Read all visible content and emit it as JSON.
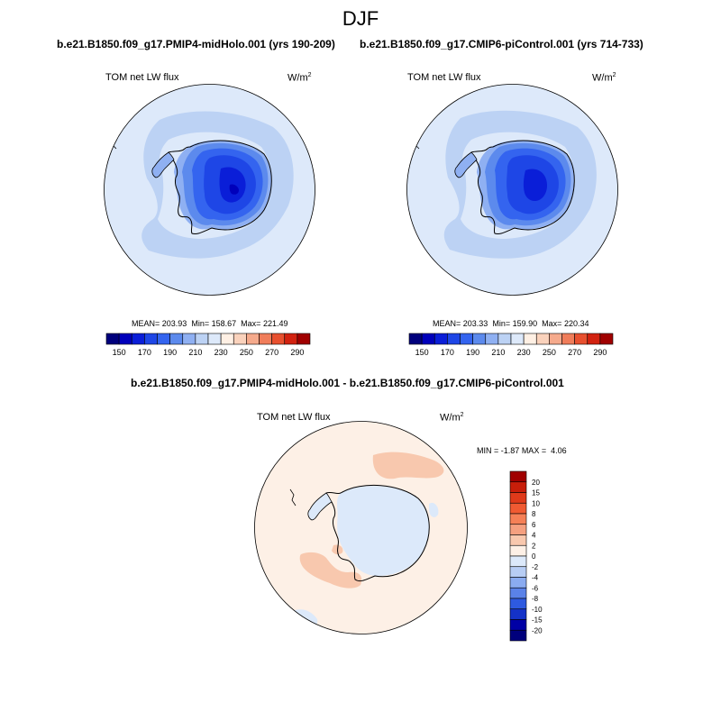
{
  "figure": {
    "season_title": "DJF",
    "variable_name": "TOM net LW flux",
    "units_base": "W/m",
    "units_exp": "2"
  },
  "panels": [
    {
      "case_title": "b.e21.B1850.f09_g17.PMIP4-midHolo.001 (yrs 190-209)",
      "stats": {
        "mean_label": "MEAN=",
        "mean": "203.93",
        "min_label": "Min=",
        "min": "158.67",
        "max_label": "Max=",
        "max": "221.49"
      }
    },
    {
      "case_title": "b.e21.B1850.f09_g17.CMIP6-piControl.001 (yrs 714-733)",
      "stats": {
        "mean_label": "MEAN=",
        "mean": "203.33",
        "min_label": "Min=",
        "min": "159.90",
        "max_label": "Max=",
        "max": "220.34"
      }
    }
  ],
  "difference": {
    "title": "b.e21.B1850.f09_g17.PMIP4-midHolo.001 - b.e21.B1850.f09_g17.CMIP6-piControl.001",
    "stats": {
      "min_label": "MIN =",
      "min": "-1.87",
      "max_label": "MAX =",
      "max": "4.06"
    }
  },
  "chart_data": [
    {
      "type": "filled_contour_map",
      "projection": "south_polar_stereographic",
      "title": "b.e21.B1850.f09_g17.PMIP4-midHolo.001 (yrs 190-209)",
      "variable": "TOM net LW flux",
      "units": "W/m2",
      "mean": 203.93,
      "min": 158.67,
      "max": 221.49,
      "colorbar": {
        "orientation": "horizontal",
        "levels": [
          150,
          160,
          170,
          180,
          190,
          200,
          210,
          220,
          230,
          240,
          250,
          260,
          270,
          280,
          290
        ],
        "tick_labels": [
          "150",
          "170",
          "190",
          "210",
          "230",
          "250",
          "270",
          "290"
        ],
        "colors": [
          "#00007c",
          "#0000bb",
          "#0a1ed8",
          "#1e46e6",
          "#3464ef",
          "#5c8aed",
          "#8fb0f2",
          "#bcd2f4",
          "#dde9fa",
          "#fff0e4",
          "#fad2bc",
          "#f5aa8c",
          "#f07d5a",
          "#e8502f",
          "#d22210",
          "#a00000"
        ]
      }
    },
    {
      "type": "filled_contour_map",
      "projection": "south_polar_stereographic",
      "title": "b.e21.B1850.f09_g17.CMIP6-piControl.001 (yrs 714-733)",
      "variable": "TOM net LW flux",
      "units": "W/m2",
      "mean": 203.33,
      "min": 159.9,
      "max": 220.34,
      "colorbar": {
        "orientation": "horizontal",
        "levels": [
          150,
          160,
          170,
          180,
          190,
          200,
          210,
          220,
          230,
          240,
          250,
          260,
          270,
          280,
          290
        ],
        "tick_labels": [
          "150",
          "170",
          "190",
          "210",
          "230",
          "250",
          "270",
          "290"
        ],
        "colors": [
          "#00007c",
          "#0000bb",
          "#0a1ed8",
          "#1e46e6",
          "#3464ef",
          "#5c8aed",
          "#8fb0f2",
          "#bcd2f4",
          "#dde9fa",
          "#fff0e4",
          "#fad2bc",
          "#f5aa8c",
          "#f07d5a",
          "#e8502f",
          "#d22210",
          "#a00000"
        ]
      }
    },
    {
      "type": "filled_contour_map",
      "projection": "south_polar_stereographic",
      "title": "b.e21.B1850.f09_g17.PMIP4-midHolo.001 - b.e21.B1850.f09_g17.CMIP6-piControl.001",
      "variable": "TOM net LW flux",
      "units": "W/m2",
      "min": -1.87,
      "max": 4.06,
      "colorbar": {
        "orientation": "vertical",
        "levels": [
          -20,
          -15,
          -10,
          -8,
          -6,
          -4,
          -2,
          0,
          2,
          4,
          6,
          8,
          10,
          15,
          20
        ],
        "tick_labels": [
          "20",
          "15",
          "10",
          "8",
          "6",
          "4",
          "2",
          "0",
          "-2",
          "-4",
          "-6",
          "-8",
          "-10",
          "-15",
          "-20"
        ],
        "colors_top_to_bottom": [
          "#a00000",
          "#c81e0a",
          "#e03a1a",
          "#f05a32",
          "#f58057",
          "#f5a080",
          "#f8c8ae",
          "#fdf0e6",
          "#dce9fa",
          "#b7cdf4",
          "#8aabf0",
          "#5a82e8",
          "#2e5ae0",
          "#1432c8",
          "#0000a5",
          "#00007c"
        ]
      }
    }
  ]
}
